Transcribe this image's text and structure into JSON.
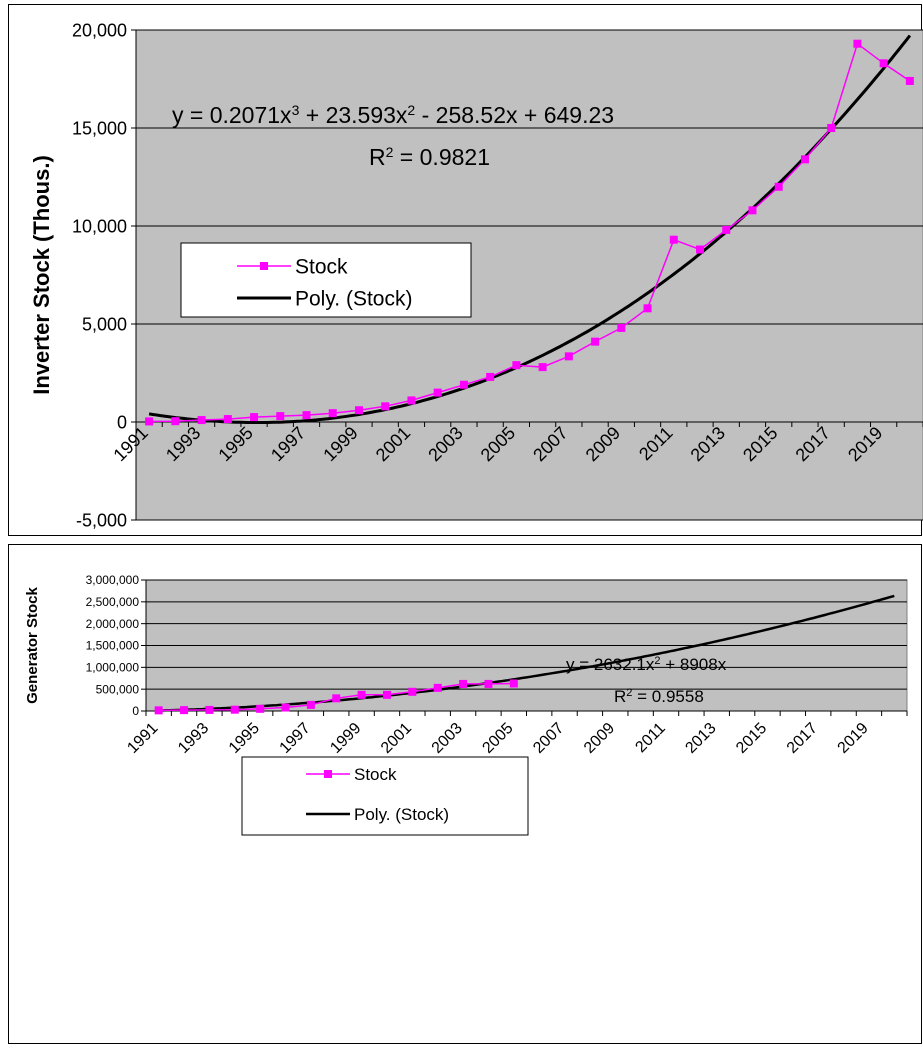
{
  "chart_data": [
    {
      "type": "line",
      "ylabel": "Inverter Stock  (Thous.)",
      "ylim": [
        -5000,
        20000
      ],
      "y_ticks": [
        "-5,000",
        "0",
        "5,000",
        "10,000",
        "15,000",
        "20,000"
      ],
      "x_ticks": [
        "1991",
        "1993",
        "1995",
        "1997",
        "1999",
        "2001",
        "2003",
        "2005",
        "2007",
        "2009",
        "2011",
        "2013",
        "2015",
        "2017",
        "2019"
      ],
      "grid": "horizontal",
      "plot_background": "#c0c0c0",
      "legend": {
        "placement": "middle-left",
        "entries": [
          "Stock",
          "Poly. (Stock)"
        ]
      },
      "equation_line1": {
        "base": "y = 0.2071x",
        "sup1": "3",
        "mid": " + 23.593x",
        "sup2": "2",
        "tail": " - 258.52x + 649.23"
      },
      "r2": {
        "base": "R",
        "sup": "2",
        "tail": " = 0.9821"
      },
      "series": [
        {
          "name": "Stock",
          "color": "#ff00ff",
          "marker": "square",
          "x": [
            1991,
            1992,
            1993,
            1994,
            1995,
            1996,
            1997,
            1998,
            1999,
            2000,
            2001,
            2002,
            2003,
            2004,
            2005,
            2006,
            2007,
            2008,
            2009,
            2010,
            2011,
            2012,
            2013,
            2014,
            2015,
            2016,
            2017,
            2018,
            2019,
            2020
          ],
          "values": [
            30,
            40,
            100,
            150,
            250,
            300,
            350,
            450,
            600,
            800,
            1100,
            1500,
            1900,
            2300,
            2900,
            2800,
            3350,
            4100,
            4800,
            5800,
            9300,
            8800,
            9800,
            10800,
            12000,
            13400,
            15000,
            19300,
            18300,
            17400
          ]
        },
        {
          "name": "Poly. (Stock)",
          "color": "#000000",
          "trendline": "polynomial-3",
          "coefficients": [
            0.2071,
            23.593,
            -258.52,
            649.23
          ],
          "x_range": [
            1991,
            2020
          ]
        }
      ]
    },
    {
      "type": "line",
      "ylabel": "Generator Stock",
      "ylim": [
        0,
        3000000
      ],
      "y_ticks": [
        "0",
        "500,000",
        "1,000,000",
        "1,500,000",
        "2,000,000",
        "2,500,000",
        "3,000,000"
      ],
      "x_ticks": [
        "1991",
        "1993",
        "1995",
        "1997",
        "1999",
        "2001",
        "2003",
        "2005",
        "2007",
        "2009",
        "2011",
        "2013",
        "2015",
        "2017",
        "2019"
      ],
      "grid": "horizontal",
      "plot_background": "#c0c0c0",
      "legend": {
        "placement": "middle-left",
        "entries": [
          "Stock",
          "Poly. (Stock)"
        ]
      },
      "equation_line1": {
        "base": "y = 2632.1x",
        "sup1": "2",
        "mid": " + 8908x",
        "sup2": "",
        "tail": ""
      },
      "r2": {
        "base": "R",
        "sup": "2",
        "tail": " = 0.9558"
      },
      "series": [
        {
          "name": "Stock",
          "color": "#ff00ff",
          "marker": "square",
          "x": [
            1991,
            1992,
            1993,
            1994,
            1995,
            1996,
            1997,
            1998,
            1999,
            2000,
            2001,
            2002,
            2003,
            2004,
            2005,
            2006
          ],
          "values": [
            15000,
            20000,
            25000,
            30000,
            50000,
            80000,
            140000,
            290000,
            370000,
            370000,
            440000,
            530000,
            620000,
            620000,
            630000,
            0
          ]
        },
        {
          "name": "Poly. (Stock)",
          "color": "#000000",
          "trendline": "polynomial-2",
          "coefficients": [
            2632.1,
            8908,
            0
          ],
          "x_range": [
            1991,
            2020
          ]
        }
      ]
    }
  ]
}
